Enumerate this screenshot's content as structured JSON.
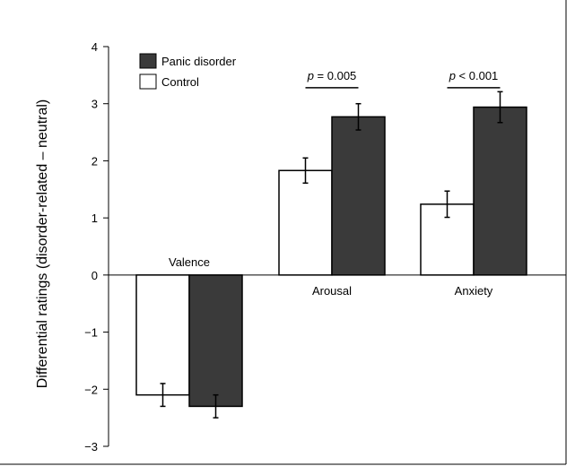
{
  "chart_data": {
    "type": "bar",
    "ylabel": "Differential ratings (disorder-related – neutral)",
    "ylim": [
      -3,
      4
    ],
    "yticks": [
      {
        "value": 4,
        "label": "4"
      },
      {
        "value": 3,
        "label": "3"
      },
      {
        "value": 2,
        "label": "2"
      },
      {
        "value": 1,
        "label": "1"
      },
      {
        "value": 0,
        "label": "0"
      },
      {
        "value": -1,
        "label": "−1"
      },
      {
        "value": -2,
        "label": "−2"
      },
      {
        "value": -3,
        "label": "−3"
      }
    ],
    "categories": [
      "Valence",
      "Arousal",
      "Anxiety"
    ],
    "series": [
      {
        "name": "Control",
        "color": "#ffffff",
        "values": [
          -2.1,
          1.83,
          1.24
        ],
        "errors": [
          0.2,
          0.22,
          0.23
        ]
      },
      {
        "name": "Panic disorder",
        "color": "#3a3a3a",
        "values": [
          -2.3,
          2.77,
          2.94
        ],
        "errors": [
          0.2,
          0.23,
          0.27
        ]
      }
    ],
    "legend_position": "top-left",
    "annotations": [
      {
        "category": "Arousal",
        "p_label": "p",
        "text": " = 0.005",
        "y": 3.28
      },
      {
        "category": "Anxiety",
        "p_label": "p",
        "text": " < 0.001",
        "y": 3.28
      }
    ]
  }
}
